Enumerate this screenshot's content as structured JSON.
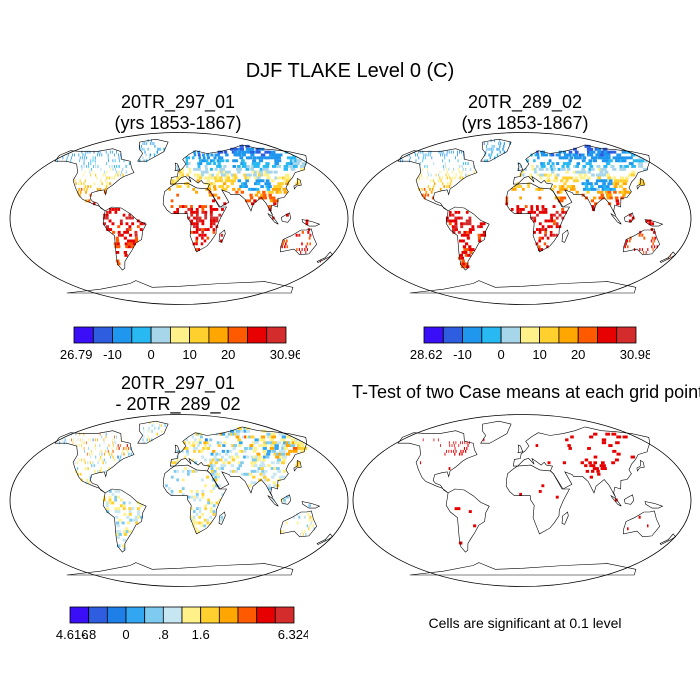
{
  "title": "DJF TLAKE Level 0 (C)",
  "panels": [
    {
      "name": "20TR_297_01 mean",
      "title_lines": [
        "20TR_297_01",
        "(yrs 1853-1867)"
      ],
      "field": "mean",
      "colorbar": {
        "colors": [
          "#3a0ef7",
          "#2f5de0",
          "#1f97ef",
          "#29b9f2",
          "#a7d5ea",
          "#fff18a",
          "#ffd02e",
          "#ffa600",
          "#ff5a00",
          "#e60000",
          "#d42c2c"
        ],
        "labels": [
          "-26.79",
          "-10",
          "0",
          "10",
          "20",
          "30.96"
        ]
      }
    },
    {
      "name": "20TR_289_02 mean",
      "title_lines": [
        "20TR_289_02",
        "(yrs 1853-1867)"
      ],
      "field": "mean",
      "colorbar": {
        "colors": [
          "#3a0ef7",
          "#2f5de0",
          "#1f97ef",
          "#29b9f2",
          "#a7d5ea",
          "#fff18a",
          "#ffd02e",
          "#ffa600",
          "#ff5a00",
          "#e60000",
          "#d42c2c"
        ],
        "labels": [
          "-28.62",
          "-10",
          "0",
          "10",
          "20",
          "30.98"
        ]
      }
    },
    {
      "name": "difference",
      "title_lines": [
        "20TR_297_01",
        "- 20TR_289_02"
      ],
      "field": "diff",
      "colorbar": {
        "colors": [
          "#3a0ef7",
          "#2f5de0",
          "#1f7fe8",
          "#33a6f2",
          "#7ecbef",
          "#c6e6f2",
          "#fff18a",
          "#ffd02e",
          "#ffa600",
          "#ff5a00",
          "#e60000",
          "#d42c2c"
        ],
        "labels": [
          "-4.616",
          "-.8",
          "0",
          ".8",
          "1.6",
          "6.324"
        ]
      }
    },
    {
      "name": "t-test",
      "title_lines": [
        "T-Test of two Case means at each grid point"
      ],
      "field": "ttest",
      "note": "Cells are significant at 0.1 level",
      "signif_color": "#e60000"
    }
  ]
}
